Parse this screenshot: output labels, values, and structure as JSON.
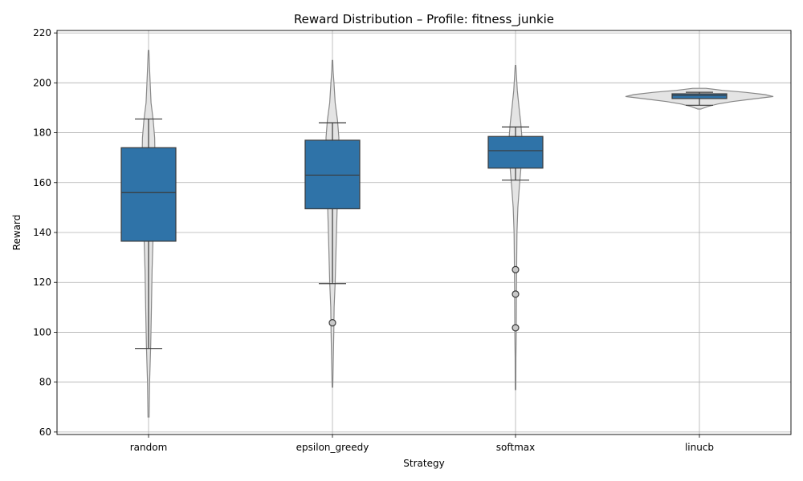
{
  "chart_data": {
    "type": "violin-box",
    "title": "Reward Distribution – Profile: fitness_junkie",
    "xlabel": "Strategy",
    "ylabel": "Reward",
    "ylim": [
      59,
      221
    ],
    "yticks": [
      60,
      80,
      100,
      120,
      140,
      160,
      180,
      200,
      220
    ],
    "grid": true,
    "colors": {
      "box_fill": "#2f73a8",
      "box_edge": "#3a3a3a",
      "violin_fill": "#e4e4e4",
      "violin_edge": "#888888",
      "outlier_fill": "#c8c8c8"
    },
    "categories": [
      "random",
      "epsilon_greedy",
      "softmax",
      "linucb"
    ],
    "series": [
      {
        "category": "random",
        "whisker_low": 93.5,
        "q1": 136.5,
        "median": 156,
        "q3": 174,
        "whisker_high": 185.5,
        "outliers": [],
        "violin_min": 66,
        "violin_max": 213,
        "violin_profile": [
          [
            66,
            0.3
          ],
          [
            80,
            0.6
          ],
          [
            95,
            1.2
          ],
          [
            110,
            1.6
          ],
          [
            125,
            2.0
          ],
          [
            140,
            2.6
          ],
          [
            150,
            3.0
          ],
          [
            160,
            3.4
          ],
          [
            170,
            3.6
          ],
          [
            178,
            3.4
          ],
          [
            185,
            2.6
          ],
          [
            192,
            1.4
          ],
          [
            200,
            0.9
          ],
          [
            207,
            0.5
          ],
          [
            213,
            0.2
          ]
        ]
      },
      {
        "category": "epsilon_greedy",
        "whisker_low": 119.5,
        "q1": 149.5,
        "median": 163,
        "q3": 177,
        "whisker_high": 184,
        "outliers": [
          103.8
        ],
        "violin_min": 78,
        "violin_max": 209,
        "violin_profile": [
          [
            78,
            0.2
          ],
          [
            90,
            0.5
          ],
          [
            100,
            0.8
          ],
          [
            110,
            1.0
          ],
          [
            120,
            1.6
          ],
          [
            135,
            2.2
          ],
          [
            150,
            2.8
          ],
          [
            160,
            3.2
          ],
          [
            170,
            3.6
          ],
          [
            178,
            3.8
          ],
          [
            185,
            3.0
          ],
          [
            192,
            1.6
          ],
          [
            200,
            0.9
          ],
          [
            205,
            0.4
          ],
          [
            209,
            0.2
          ]
        ]
      },
      {
        "category": "softmax",
        "whisker_low": 161,
        "q1": 165.8,
        "median": 172.8,
        "q3": 178.5,
        "whisker_high": 182.3,
        "outliers": [
          101.8,
          115.3,
          125.1
        ],
        "violin_min": 77,
        "violin_max": 207,
        "violin_profile": [
          [
            77,
            0.2
          ],
          [
            90,
            0.3
          ],
          [
            100,
            0.5
          ],
          [
            115,
            0.6
          ],
          [
            130,
            0.8
          ],
          [
            140,
            1.0
          ],
          [
            150,
            1.6
          ],
          [
            158,
            2.6
          ],
          [
            165,
            3.6
          ],
          [
            172,
            4.2
          ],
          [
            178,
            4.4
          ],
          [
            184,
            3.6
          ],
          [
            190,
            2.4
          ],
          [
            197,
            1.2
          ],
          [
            203,
            0.6
          ],
          [
            207,
            0.2
          ]
        ]
      },
      {
        "category": "linucb",
        "whisker_low": 191,
        "q1": 193.7,
        "median": 195,
        "q3": 195.6,
        "whisker_high": 196.2,
        "outliers": [],
        "violin_min": 189.5,
        "violin_max": 197.8,
        "violin_profile": [
          [
            189.5,
            2
          ],
          [
            190.5,
            10
          ],
          [
            191.5,
            22
          ],
          [
            192.5,
            40
          ],
          [
            193.5,
            64
          ],
          [
            194.5,
            90
          ],
          [
            195.3,
            80
          ],
          [
            196.2,
            56
          ],
          [
            197,
            28
          ],
          [
            197.8,
            8
          ]
        ]
      }
    ]
  }
}
